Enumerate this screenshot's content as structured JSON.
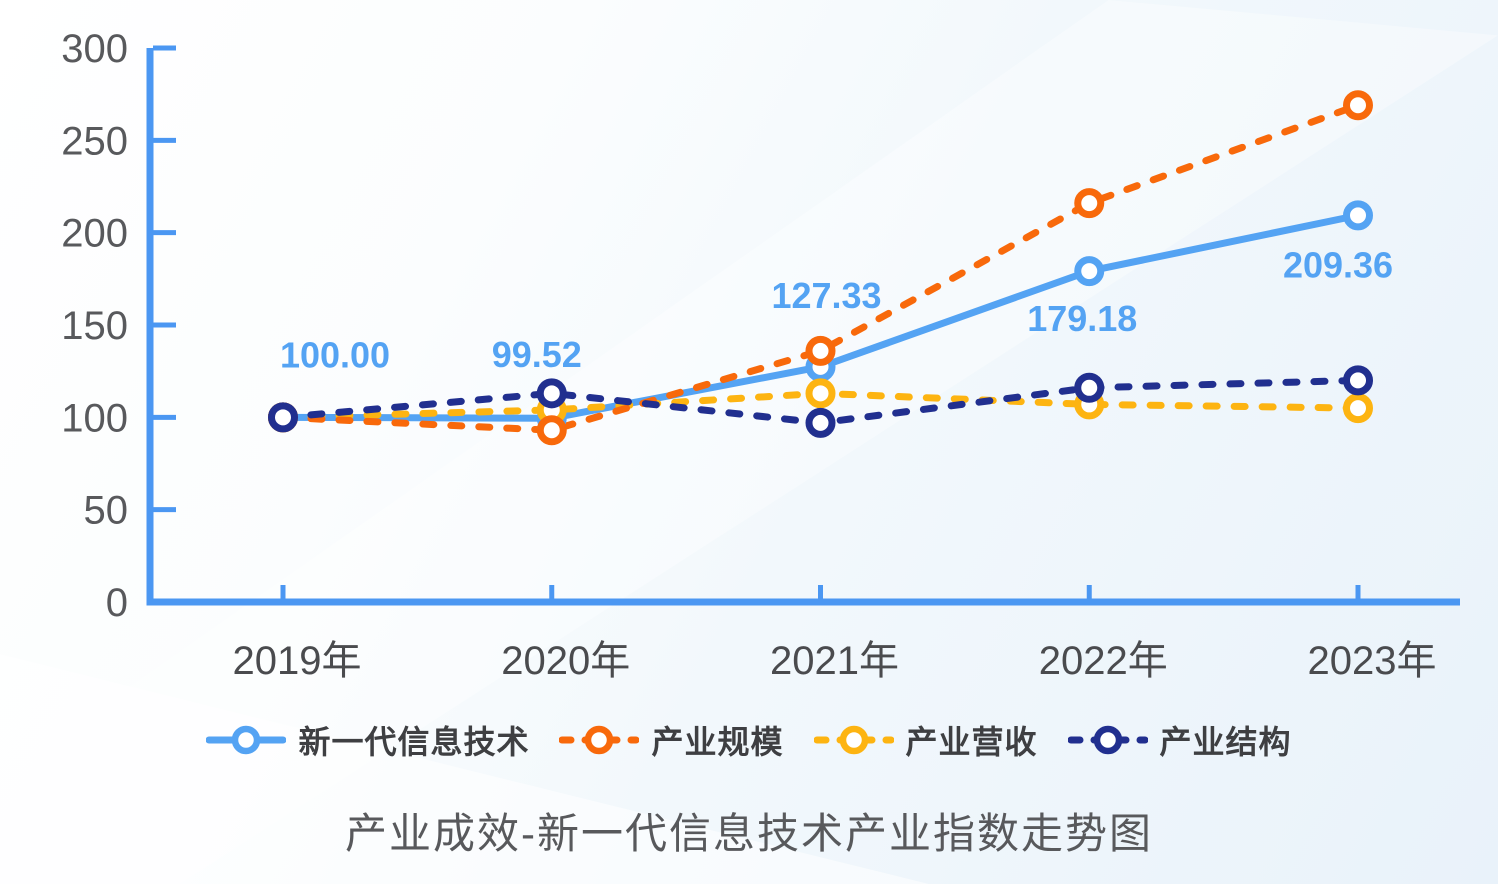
{
  "chart_data": {
    "type": "line",
    "title": "产业成效-新一代信息技术产业指数走势图",
    "categories": [
      "2019年",
      "2020年",
      "2021年",
      "2022年",
      "2023年"
    ],
    "series": [
      {
        "name": "新一代信息技术",
        "color": "#54a3f3",
        "line_style": "solid",
        "values": [
          100.0,
          99.52,
          127.33,
          179.18,
          209.36
        ],
        "data_labels": [
          "100.00",
          "99.52",
          "127.33",
          "179.18",
          "209.36"
        ]
      },
      {
        "name": "产业规模",
        "color": "#f8690b",
        "line_style": "dashed",
        "values": [
          100,
          93,
          136,
          216,
          269
        ],
        "data_labels": []
      },
      {
        "name": "产业营收",
        "color": "#fdb411",
        "line_style": "dashed",
        "values": [
          100,
          104,
          113,
          107,
          105
        ],
        "data_labels": []
      },
      {
        "name": "产业结构",
        "color": "#212f8f",
        "line_style": "dashed",
        "values": [
          100,
          113,
          97,
          116,
          120
        ],
        "data_labels": []
      }
    ],
    "ylim": [
      0,
      300
    ],
    "y_ticks": [
      "0",
      "50",
      "100",
      "150",
      "200",
      "250",
      "300"
    ],
    "grid": false,
    "legend_position": "bottom",
    "axis_color": "#4b97f2",
    "tick_label_color": "#58595c",
    "x_label_color": "#4a4b4e"
  }
}
